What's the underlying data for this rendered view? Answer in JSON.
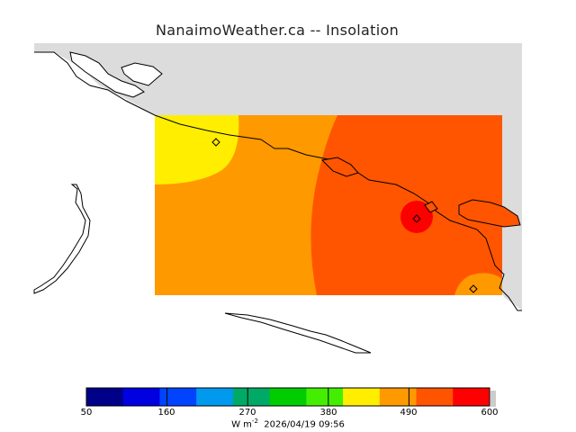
{
  "title": "NanaimoWeather.ca -- Insolation",
  "map": {
    "land_color": "#dcdcdc",
    "water_color": "#ffffff",
    "field_colors": {
      "yellow_zone": "#ffee00",
      "orange_zone": "#ff9900",
      "dark_orange_zone": "#ff5500",
      "red_zone": "#ff0000"
    },
    "station_marker": "diamond"
  },
  "colorbar": {
    "colors": [
      "#000088",
      "#0000e0",
      "#0044ff",
      "#0099ee",
      "#00aa66",
      "#00cc00",
      "#44ee00",
      "#ffee00",
      "#ff9900",
      "#ff5500",
      "#ff0000"
    ],
    "tick_labels": [
      "50",
      "160",
      "270",
      "380",
      "490",
      "600"
    ],
    "unit": "W m",
    "unit_exp": "-2",
    "timestamp": "2026/04/19 09:56"
  }
}
